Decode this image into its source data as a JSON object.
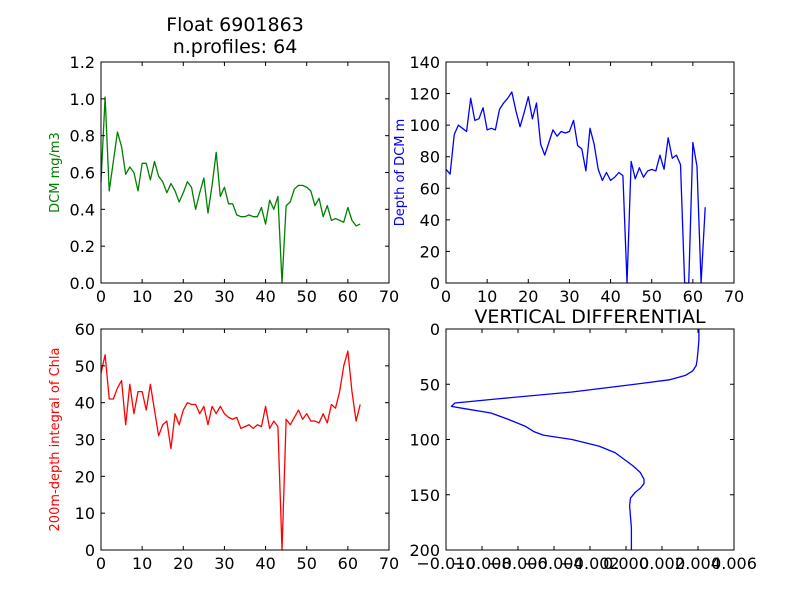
{
  "chart_data": [
    {
      "type": "line",
      "title": [
        "Float 6901863",
        "n.profiles: 64"
      ],
      "xlabel": "",
      "ylabel": "DCM mg/m3",
      "xlim": [
        0,
        70
      ],
      "ylim": [
        0,
        1.2
      ],
      "xticks": [
        "0",
        "10",
        "20",
        "30",
        "40",
        "50",
        "60",
        "70"
      ],
      "yticks": [
        "0.0",
        "0.2",
        "0.4",
        "0.6",
        "0.8",
        "1.0",
        "1.2"
      ],
      "color": "#008000",
      "series": [
        {
          "x": [
            0,
            1,
            2,
            3,
            4,
            5,
            6,
            7,
            8,
            9,
            10,
            11,
            12,
            13,
            14,
            15,
            16,
            17,
            18,
            19,
            20,
            21,
            22,
            23,
            24,
            25,
            26,
            27,
            28,
            29,
            30,
            31,
            32,
            33,
            34,
            35,
            36,
            37,
            38,
            39,
            40,
            41,
            42,
            43,
            44,
            45,
            46,
            47,
            48,
            49,
            50,
            51,
            52,
            53,
            54,
            55,
            56,
            57,
            58,
            59,
            60,
            61,
            62,
            63
          ],
          "values": [
            0.55,
            1.01,
            0.5,
            0.66,
            0.82,
            0.74,
            0.59,
            0.63,
            0.6,
            0.5,
            0.65,
            0.65,
            0.56,
            0.66,
            0.58,
            0.55,
            0.49,
            0.54,
            0.5,
            0.44,
            0.49,
            0.55,
            0.52,
            0.4,
            0.49,
            0.57,
            0.38,
            0.53,
            0.71,
            0.47,
            0.52,
            0.43,
            0.43,
            0.37,
            0.36,
            0.36,
            0.37,
            0.36,
            0.36,
            0.41,
            0.32,
            0.45,
            0.4,
            0.47,
            0.0,
            0.42,
            0.44,
            0.51,
            0.53,
            0.53,
            0.52,
            0.5,
            0.42,
            0.46,
            0.36,
            0.42,
            0.34,
            0.35,
            0.34,
            0.33,
            0.41,
            0.34,
            0.31,
            0.32
          ]
        }
      ]
    },
    {
      "type": "line",
      "title": "",
      "xlabel": "",
      "ylabel": "Depth of DCM m",
      "xlim": [
        0,
        70
      ],
      "ylim": [
        0,
        140
      ],
      "xticks": [
        "0",
        "10",
        "20",
        "30",
        "40",
        "50",
        "60",
        "70"
      ],
      "yticks": [
        "0",
        "20",
        "40",
        "60",
        "80",
        "100",
        "120",
        "140"
      ],
      "color": "#0000ff",
      "series": [
        {
          "x": [
            0,
            1,
            2,
            3,
            4,
            5,
            6,
            7,
            8,
            9,
            10,
            11,
            12,
            13,
            14,
            15,
            16,
            17,
            18,
            19,
            20,
            21,
            22,
            23,
            24,
            25,
            26,
            27,
            28,
            29,
            30,
            31,
            32,
            33,
            34,
            35,
            36,
            37,
            38,
            39,
            40,
            41,
            42,
            43,
            44,
            45,
            46,
            47,
            48,
            49,
            50,
            51,
            52,
            53,
            54,
            55,
            56,
            57,
            58,
            59,
            60,
            61,
            62,
            63
          ],
          "values": [
            72,
            69,
            94,
            100,
            98,
            96,
            117,
            103,
            104,
            111,
            97,
            98,
            97,
            110,
            114,
            117,
            121,
            109,
            99,
            108,
            118,
            104,
            114,
            88,
            81,
            89,
            97,
            93,
            96,
            95,
            96,
            103,
            87,
            85,
            71,
            98,
            88,
            72,
            65,
            70,
            65,
            67,
            70,
            68,
            0,
            77,
            66,
            73,
            67,
            71,
            72,
            71,
            81,
            72,
            92,
            79,
            81,
            75,
            0,
            0,
            89,
            74,
            0,
            48
          ]
        }
      ]
    },
    {
      "type": "line",
      "title": "",
      "xlabel": "",
      "ylabel": "200m-depth integral of Chla",
      "xlim": [
        0,
        70
      ],
      "ylim": [
        0,
        60
      ],
      "xticks": [
        "0",
        "10",
        "20",
        "30",
        "40",
        "50",
        "60",
        "70"
      ],
      "yticks": [
        "0",
        "10",
        "20",
        "30",
        "40",
        "50",
        "60"
      ],
      "color": "#ff0000",
      "series": [
        {
          "x": [
            0,
            1,
            2,
            3,
            4,
            5,
            6,
            7,
            8,
            9,
            10,
            11,
            12,
            13,
            14,
            15,
            16,
            17,
            18,
            19,
            20,
            21,
            22,
            23,
            24,
            25,
            26,
            27,
            28,
            29,
            30,
            31,
            32,
            33,
            34,
            35,
            36,
            37,
            38,
            39,
            40,
            41,
            42,
            43,
            44,
            45,
            46,
            47,
            48,
            49,
            50,
            51,
            52,
            53,
            54,
            55,
            56,
            57,
            58,
            59,
            60,
            61,
            62,
            63
          ],
          "values": [
            48,
            53,
            41,
            41,
            44,
            46,
            34,
            45,
            37,
            43,
            43,
            38,
            45,
            38,
            31,
            34,
            35,
            27.5,
            37,
            34,
            38,
            40,
            39.5,
            39.5,
            37,
            39,
            34,
            39,
            37,
            39,
            37,
            36,
            35.5,
            36,
            33,
            33.5,
            34,
            33,
            34,
            33.5,
            39,
            33,
            35,
            33.5,
            0,
            35.5,
            34,
            36,
            38,
            35.5,
            37,
            35,
            35,
            34.5,
            37,
            34.5,
            39.5,
            38.5,
            43,
            50,
            54,
            43,
            35,
            39.5
          ]
        }
      ]
    },
    {
      "type": "line",
      "title": "VERTICAL DIFFERENTIAL",
      "xlabel": "",
      "ylabel": "",
      "xlim": [
        -0.01,
        0.006
      ],
      "ylim": [
        200,
        0
      ],
      "xticks": [
        "−0.010",
        "−0.008",
        "−0.006",
        "−0.004",
        "−0.002",
        "0.000",
        "0.002",
        "0.004",
        "0.006"
      ],
      "xticks_values": [
        -0.01,
        -0.008,
        -0.006,
        -0.004,
        -0.002,
        0.0,
        0.002,
        0.004,
        0.006
      ],
      "yticks": [
        "0",
        "50",
        "100",
        "150",
        "200"
      ],
      "yticks_values": [
        0,
        50,
        100,
        150,
        200
      ],
      "color": "#0000ff",
      "series": [
        {
          "x": [
            0.00405,
            0.00405,
            0.004,
            0.00395,
            0.0039,
            0.0037,
            0.0033,
            0.0024,
            0.0005,
            -0.003,
            -0.007,
            -0.0095,
            -0.0097,
            -0.009,
            -0.0075,
            -0.0065,
            -0.0056,
            -0.0051,
            -0.0046,
            -0.003,
            -0.0015,
            -0.0006,
            -0.0001,
            0.0004,
            0.0008,
            0.001,
            0.001,
            0.0008,
            0.0005,
            0.00025,
            0.0002,
            0.00025,
            0.0003,
            0.0003,
            0.0003
          ],
          "values": [
            0,
            10,
            20,
            28,
            33,
            38,
            42,
            46,
            50,
            57,
            63,
            67,
            70,
            72,
            76,
            82,
            88,
            93,
            96,
            100,
            106,
            112,
            118,
            124,
            130,
            136,
            140,
            144,
            148,
            153,
            160,
            170,
            180,
            190,
            200
          ]
        }
      ]
    }
  ]
}
